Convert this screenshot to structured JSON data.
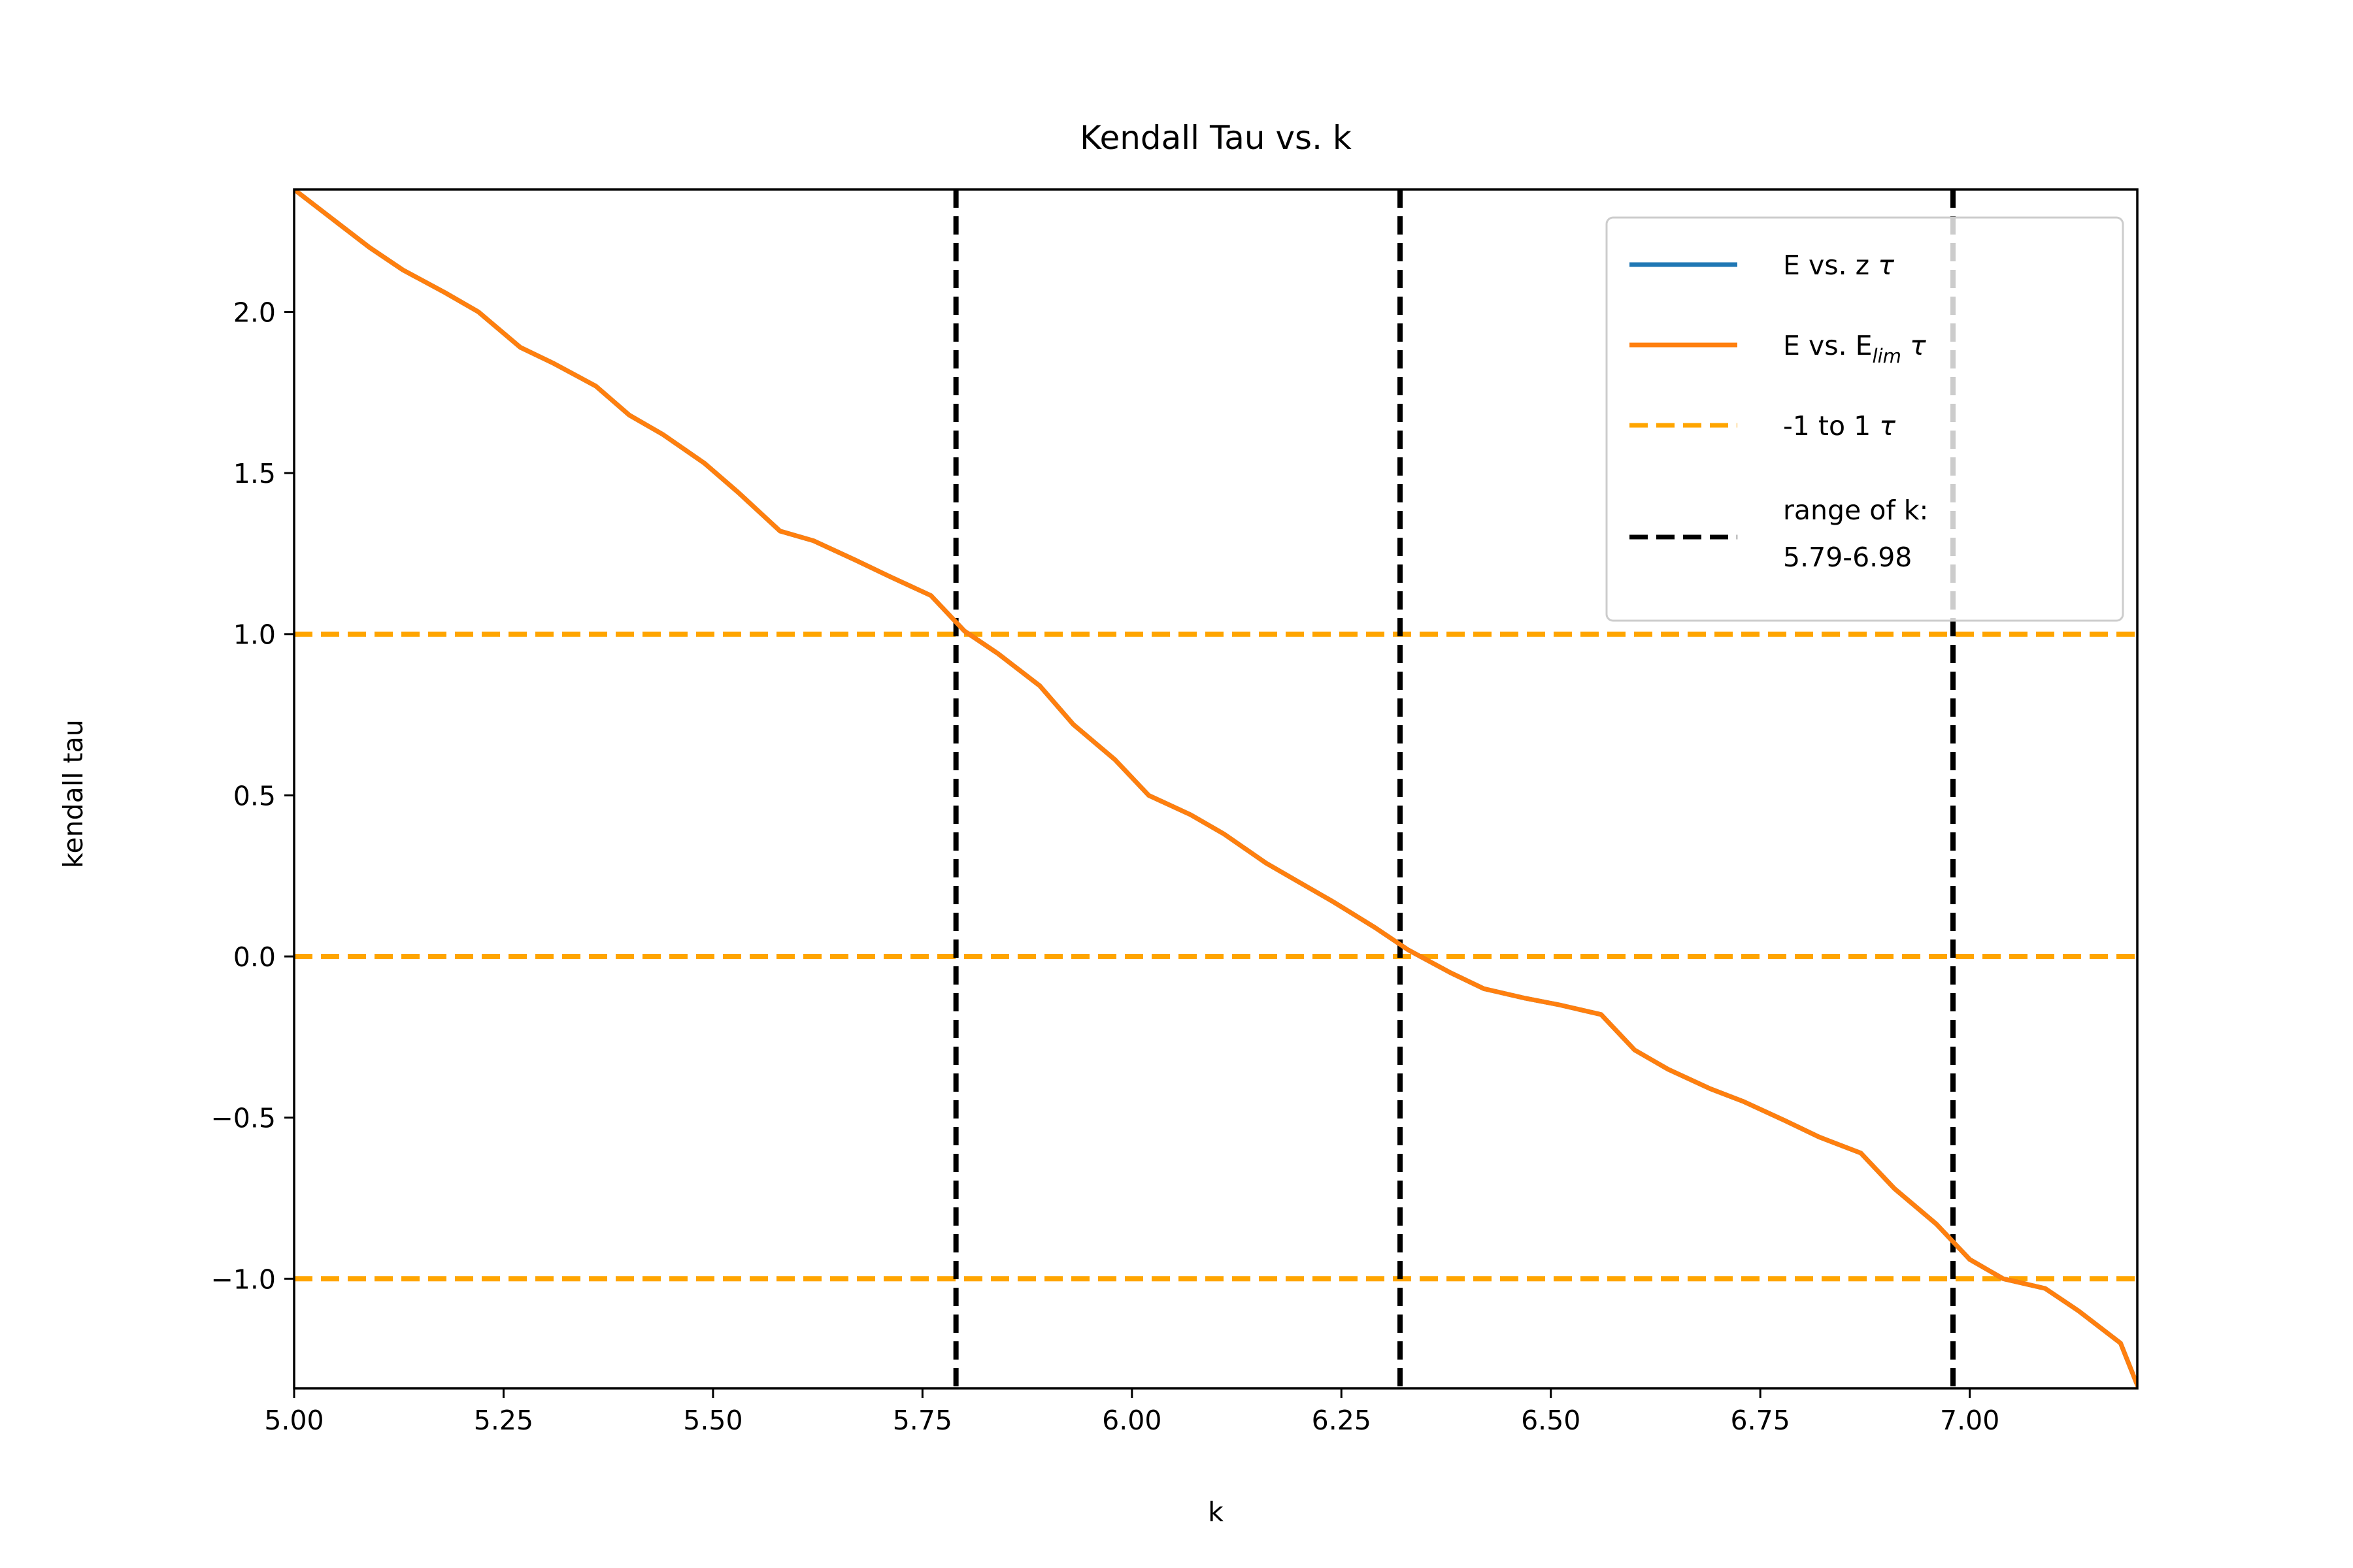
{
  "chart_data": {
    "type": "line",
    "title": "Kendall Tau vs. k",
    "xlabel": "k",
    "ylabel": "kendall tau",
    "xlim": [
      5.0,
      7.2
    ],
    "ylim": [
      -1.34,
      2.38
    ],
    "xticks": [
      {
        "value": 5.0,
        "label": "5.00"
      },
      {
        "value": 5.25,
        "label": "5.25"
      },
      {
        "value": 5.5,
        "label": "5.50"
      },
      {
        "value": 5.75,
        "label": "5.75"
      },
      {
        "value": 6.0,
        "label": "6.00"
      },
      {
        "value": 6.25,
        "label": "6.25"
      },
      {
        "value": 6.5,
        "label": "6.50"
      },
      {
        "value": 6.75,
        "label": "6.75"
      },
      {
        "value": 7.0,
        "label": "7.00"
      }
    ],
    "yticks": [
      {
        "value": -1.0,
        "label": "−1.0"
      },
      {
        "value": -0.5,
        "label": "−0.5"
      },
      {
        "value": 0.0,
        "label": "0.0"
      },
      {
        "value": 0.5,
        "label": "0.5"
      },
      {
        "value": 1.0,
        "label": "1.0"
      },
      {
        "value": 1.5,
        "label": "1.5"
      },
      {
        "value": 2.0,
        "label": "2.0"
      }
    ],
    "grid": false,
    "legend_position": "top-right",
    "series": [
      {
        "name": "E vs. z τ",
        "color": "#1f77b4",
        "style": "solid",
        "x": [
          5.0,
          5.04,
          5.09,
          5.13,
          5.18,
          5.22,
          5.27,
          5.31,
          5.36,
          5.4,
          5.44,
          5.49,
          5.53,
          5.58,
          5.62,
          5.67,
          5.71,
          5.76,
          5.8,
          5.84,
          5.89,
          5.93,
          5.98,
          6.02,
          6.07,
          6.11,
          6.16,
          6.2,
          6.24,
          6.29,
          6.33,
          6.38,
          6.42,
          6.47,
          6.51,
          6.56,
          6.6,
          6.64,
          6.69,
          6.73,
          6.78,
          6.82,
          6.87,
          6.91,
          6.96,
          7.0,
          7.04,
          7.09,
          7.13,
          7.18,
          7.2
        ],
        "values": [
          2.38,
          2.3,
          2.2,
          2.13,
          2.06,
          2.0,
          1.89,
          1.84,
          1.77,
          1.68,
          1.62,
          1.53,
          1.44,
          1.32,
          1.29,
          1.23,
          1.18,
          1.12,
          1.01,
          0.94,
          0.84,
          0.72,
          0.61,
          0.5,
          0.44,
          0.38,
          0.29,
          0.23,
          0.17,
          0.09,
          0.02,
          -0.05,
          -0.1,
          -0.13,
          -0.15,
          -0.18,
          -0.29,
          -0.35,
          -0.41,
          -0.45,
          -0.51,
          -0.56,
          -0.61,
          -0.72,
          -0.83,
          -0.94,
          -1.0,
          -1.03,
          -1.1,
          -1.2,
          -1.33
        ]
      },
      {
        "name": "E vs. E_lim τ",
        "color": "#ff7f0e",
        "style": "solid",
        "x": [
          5.0,
          5.04,
          5.09,
          5.13,
          5.18,
          5.22,
          5.27,
          5.31,
          5.36,
          5.4,
          5.44,
          5.49,
          5.53,
          5.58,
          5.62,
          5.67,
          5.71,
          5.76,
          5.8,
          5.84,
          5.89,
          5.93,
          5.98,
          6.02,
          6.07,
          6.11,
          6.16,
          6.2,
          6.24,
          6.29,
          6.33,
          6.38,
          6.42,
          6.47,
          6.51,
          6.56,
          6.6,
          6.64,
          6.69,
          6.73,
          6.78,
          6.82,
          6.87,
          6.91,
          6.96,
          7.0,
          7.04,
          7.09,
          7.13,
          7.18,
          7.2
        ],
        "values": [
          2.38,
          2.3,
          2.2,
          2.13,
          2.06,
          2.0,
          1.89,
          1.84,
          1.77,
          1.68,
          1.62,
          1.53,
          1.44,
          1.32,
          1.29,
          1.23,
          1.18,
          1.12,
          1.01,
          0.94,
          0.84,
          0.72,
          0.61,
          0.5,
          0.44,
          0.38,
          0.29,
          0.23,
          0.17,
          0.09,
          0.02,
          -0.05,
          -0.1,
          -0.13,
          -0.15,
          -0.18,
          -0.29,
          -0.35,
          -0.41,
          -0.45,
          -0.51,
          -0.56,
          -0.61,
          -0.72,
          -0.83,
          -0.94,
          -1.0,
          -1.03,
          -1.1,
          -1.2,
          -1.33
        ]
      }
    ],
    "hlines": {
      "name": "-1 to 1 τ",
      "color": "#ffa500",
      "style": "dashed",
      "values": [
        -1.0,
        0.0,
        1.0
      ]
    },
    "vlines": {
      "name": "range of k:",
      "name_line2": "5.79-6.98",
      "color": "#000000",
      "style": "dashed",
      "values": [
        5.79,
        6.32,
        6.98
      ]
    },
    "legend": [
      {
        "key": "s0",
        "main": "E vs. z τ",
        "main_pre": "E vs. z ",
        "sub": "",
        "post": "τ",
        "color": "#1f77b4",
        "dash": false
      },
      {
        "key": "s1",
        "main": "E vs. E_lim τ",
        "main_pre": "E vs. E",
        "sub": "lim",
        "post": " τ",
        "color": "#ff7f0e",
        "dash": false
      },
      {
        "key": "h",
        "main": "-1 to 1 τ",
        "main_pre": "-1 to 1 ",
        "sub": "",
        "post": "τ",
        "color": "#ffa500",
        "dash": true
      },
      {
        "key": "v",
        "main": "range of k:",
        "main_pre": "range of k:",
        "sub": "",
        "post": "",
        "line2": "5.79-6.98",
        "color": "#000000",
        "dash": true
      }
    ]
  }
}
